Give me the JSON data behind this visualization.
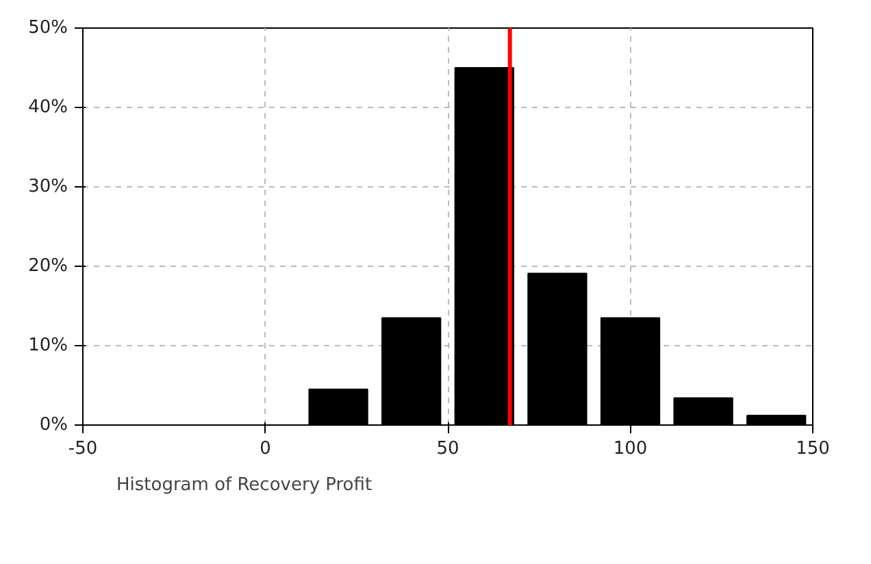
{
  "chart_data": {
    "type": "histogram",
    "bins": [
      10,
      30,
      50,
      70,
      90,
      110,
      130,
      150
    ],
    "series": [
      {
        "name": "Histogram of Recovery Profit",
        "color": "#000000",
        "values": [
          4.5,
          13.5,
          45.0,
          19.1,
          13.5,
          3.4,
          1.2
        ]
      }
    ],
    "xlim": [
      -50,
      150
    ],
    "xticks": [
      -50,
      0,
      50,
      100,
      150
    ],
    "ylim": [
      0,
      50
    ],
    "yticks": [
      {
        "value": 0,
        "label": "0%"
      },
      {
        "value": 10,
        "label": "10%"
      },
      {
        "value": 20,
        "label": "20%"
      },
      {
        "value": 30,
        "label": "30%"
      },
      {
        "value": 40,
        "label": "40%"
      },
      {
        "value": 50,
        "label": "50%"
      }
    ],
    "ref_lines": [
      {
        "axis": "x",
        "value": 67,
        "color": "#ff0000"
      }
    ],
    "grid": true,
    "legend": "bottom"
  }
}
